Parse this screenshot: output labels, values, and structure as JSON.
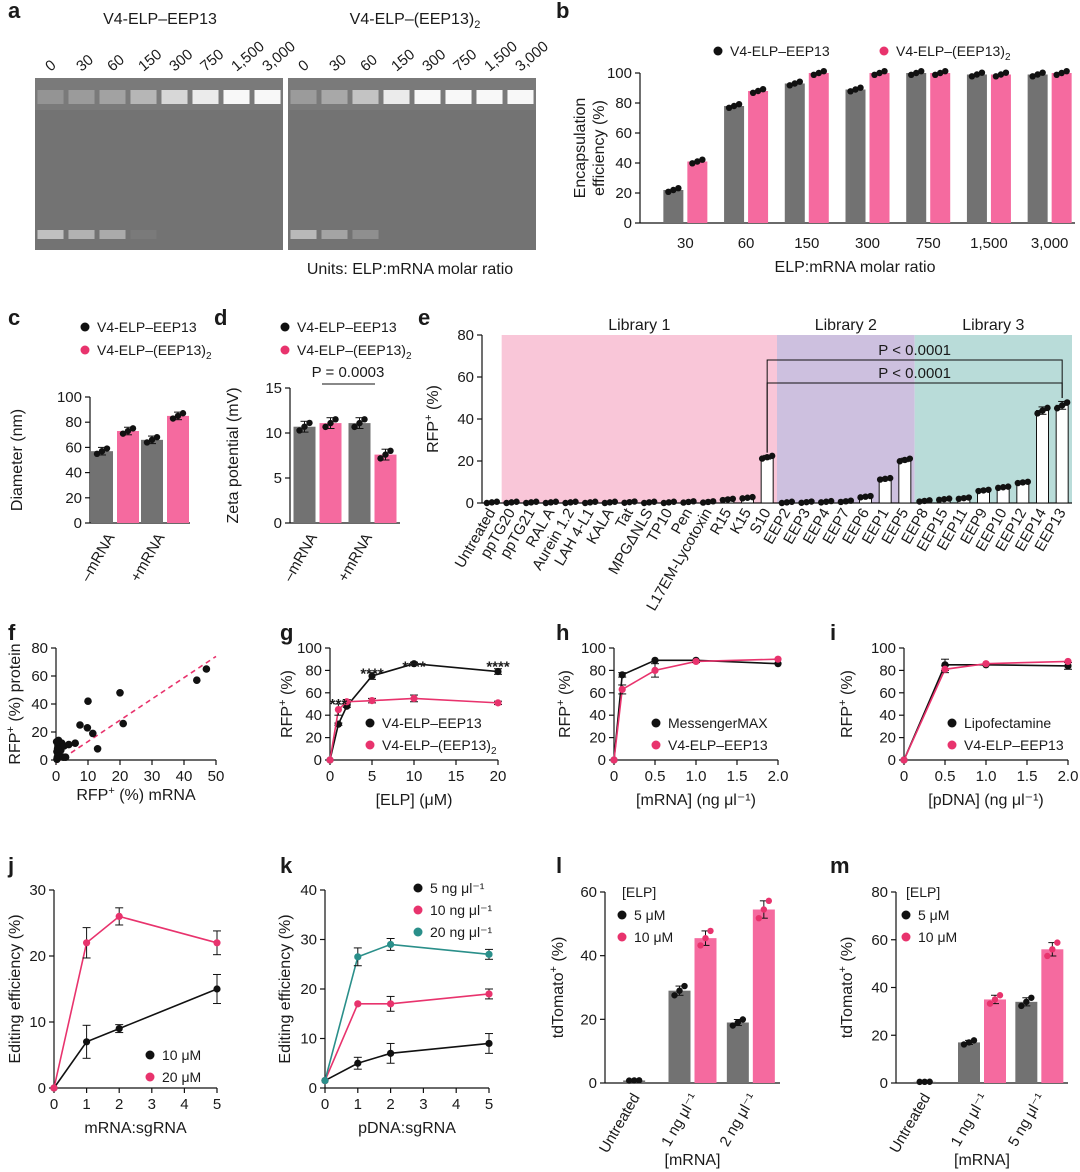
{
  "colors": {
    "gray": "#727272",
    "pink": "#f56a9f",
    "pink_dark": "#e8336d",
    "teal": "#2a8f8a",
    "black": "#111111",
    "lib1": "#f9c6d8",
    "lib2": "#cdc0df",
    "lib3": "#b9dcd9",
    "lib2_text": "#7a3d9c",
    "lib3_text": "#2a8f8a",
    "lib1_text": "#e0457b"
  },
  "panel_letters": [
    "a",
    "b",
    "c",
    "d",
    "e",
    "f",
    "g",
    "h",
    "i",
    "j",
    "k",
    "l",
    "m"
  ],
  "gel": {
    "title_left": "V4-ELP–EEP13",
    "title_right": "V4-ELP–(EEP13)",
    "title_right_sub": "2",
    "lanes": [
      "0",
      "30",
      "60",
      "150",
      "300",
      "750",
      "1,500",
      "3,000"
    ],
    "units": "Units: ELP:mRNA molar ratio"
  },
  "chart_data": [
    {
      "id": "b",
      "type": "bar",
      "title": "",
      "xlabel": "ELP:mRNA molar ratio",
      "ylabel": "Encapsulation efficiency (%)",
      "ylim": [
        0,
        100
      ],
      "yticks": [
        0,
        20,
        40,
        60,
        80,
        100
      ],
      "categories": [
        "30",
        "60",
        "150",
        "300",
        "750",
        "1,500",
        "3,000"
      ],
      "series": [
        {
          "name": "V4-ELP–EEP13",
          "values": [
            22,
            78,
            93,
            89,
            100,
            99,
            99
          ]
        },
        {
          "name": "V4-ELP–(EEP13)2",
          "values": [
            41,
            88,
            100,
            100,
            100,
            99,
            100
          ]
        }
      ]
    },
    {
      "id": "c",
      "type": "bar",
      "xlabel": "",
      "ylabel": "Diameter (nm)",
      "ylim": [
        0,
        100
      ],
      "yticks": [
        0,
        20,
        40,
        60,
        80,
        100
      ],
      "categories": [
        "–mRNA",
        "+mRNA"
      ],
      "series": [
        {
          "name": "V4-ELP–EEP13",
          "values": [
            57,
            66
          ]
        },
        {
          "name": "V4-ELP–(EEP13)2",
          "values": [
            73,
            85
          ]
        }
      ]
    },
    {
      "id": "d",
      "type": "bar",
      "xlabel": "",
      "ylabel": "Zeta potential (mV)",
      "ylim": [
        0,
        15
      ],
      "yticks": [
        0,
        5,
        10,
        15
      ],
      "categories": [
        "–mRNA",
        "+mRNA"
      ],
      "series": [
        {
          "name": "V4-ELP–EEP13",
          "values": [
            10.7,
            11.1
          ]
        },
        {
          "name": "V4-ELP–(EEP13)2",
          "values": [
            11.1,
            7.6
          ]
        }
      ],
      "annotation": "P = 0.0003"
    },
    {
      "id": "e",
      "type": "bar",
      "ylabel": "RFP+ (%)",
      "ylim": [
        0,
        80
      ],
      "yticks": [
        0,
        20,
        40,
        60,
        80
      ],
      "libraries": [
        "Library 1",
        "Library 2",
        "Library 3"
      ],
      "categories": [
        "Untreated",
        "ppTG20",
        "ppTG21",
        "RAL A",
        "Aurein 1.2",
        "LAH 4-L1",
        "KALA",
        "Tat",
        "MPGΔNLS",
        "TP10",
        "Pen",
        "L17EM-Lycotoxin",
        "R15",
        "K15",
        "S10",
        "EEP2",
        "EEP3",
        "EEP4",
        "EEP7",
        "EEP6",
        "EEP1",
        "EEP5",
        "EEP8",
        "EEP15",
        "EEP11",
        "EEP9",
        "EEP10",
        "EEP12",
        "EEP14",
        "EEP13"
      ],
      "values": [
        0.3,
        0.3,
        0.3,
        0.3,
        0.3,
        0.3,
        0.3,
        0.4,
        0.3,
        0.3,
        0.5,
        0.5,
        1.7,
        2.5,
        21.8,
        0.3,
        0.4,
        0.6,
        0.8,
        3,
        11.5,
        20.5,
        1,
        1.8,
        2.3,
        6,
        7.5,
        9.8,
        44,
        46.5
      ],
      "annotations": [
        "P < 0.0001",
        "P < 0.0001"
      ]
    },
    {
      "id": "f",
      "type": "scatter",
      "xlabel": "RFP+ (%) mRNA",
      "ylabel": "RFP+ (%) protein",
      "xlim": [
        0,
        50
      ],
      "ylim": [
        0,
        80
      ],
      "xticks": [
        0,
        10,
        20,
        30,
        40,
        50
      ],
      "yticks": [
        0,
        20,
        40,
        60,
        80
      ],
      "x": [
        0.3,
        0.4,
        0.5,
        0.6,
        0.8,
        1,
        1.5,
        1.8,
        2.3,
        2.5,
        0.3,
        0.2,
        0.5,
        3,
        4,
        6,
        7.5,
        9.8,
        10,
        11.5,
        13,
        20,
        21,
        44,
        47
      ],
      "y": [
        0.5,
        2,
        5,
        10,
        14,
        3,
        7,
        12,
        2,
        10,
        6,
        13,
        8,
        2,
        11,
        12,
        25,
        23,
        42,
        19,
        8,
        48,
        26,
        57,
        65
      ]
    },
    {
      "id": "g",
      "type": "line",
      "xlabel": "[ELP] (μM)",
      "ylabel": "RFP+ (%)",
      "xlim": [
        0,
        20
      ],
      "ylim": [
        0,
        100
      ],
      "xticks": [
        0,
        5,
        10,
        15,
        20
      ],
      "yticks": [
        0,
        20,
        40,
        60,
        80,
        100
      ],
      "series": [
        {
          "name": "V4-ELP–EEP13",
          "x": [
            0,
            1,
            2,
            5,
            10,
            20
          ],
          "y": [
            0,
            32,
            48,
            75,
            86,
            79
          ]
        },
        {
          "name": "V4-ELP–(EEP13)2",
          "x": [
            0,
            1,
            2,
            5,
            10,
            20
          ],
          "y": [
            0,
            45,
            52,
            53,
            55,
            51
          ]
        }
      ],
      "significance": [
        "***",
        "****",
        "****",
        "****"
      ]
    },
    {
      "id": "h",
      "type": "line",
      "xlabel": "[mRNA] (ng μl⁻¹)",
      "ylabel": "RFP+ (%)",
      "xlim": [
        0,
        2
      ],
      "ylim": [
        0,
        100
      ],
      "xticks": [
        0,
        0.5,
        1.0,
        1.5,
        2.0
      ],
      "yticks": [
        0,
        20,
        40,
        60,
        80,
        100
      ],
      "series": [
        {
          "name": "MessengerMAX",
          "x": [
            0,
            0.1,
            0.5,
            1,
            2
          ],
          "y": [
            0,
            76,
            89,
            89,
            86
          ]
        },
        {
          "name": "V4-ELP–EEP13",
          "x": [
            0,
            0.1,
            0.5,
            1,
            2
          ],
          "y": [
            0,
            63,
            80,
            88,
            90
          ]
        }
      ]
    },
    {
      "id": "i",
      "type": "line",
      "xlabel": "[pDNA] (ng μl⁻¹)",
      "ylabel": "RFP+ (%)",
      "xlim": [
        0,
        2
      ],
      "ylim": [
        0,
        100
      ],
      "xticks": [
        0,
        0.5,
        1.0,
        1.5,
        2.0
      ],
      "yticks": [
        0,
        20,
        40,
        60,
        80,
        100
      ],
      "series": [
        {
          "name": "Lipofectamine",
          "x": [
            0,
            0.5,
            1,
            2
          ],
          "y": [
            0,
            85,
            85,
            84
          ]
        },
        {
          "name": "V4-ELP–EEP13",
          "x": [
            0,
            0.5,
            1,
            2
          ],
          "y": [
            0,
            81,
            86,
            88
          ]
        }
      ]
    },
    {
      "id": "j",
      "type": "line",
      "xlabel": "mRNA:sgRNA",
      "ylabel": "Editing efficiency (%)",
      "xlim": [
        0,
        5
      ],
      "ylim": [
        0,
        30
      ],
      "xticks": [
        0,
        1,
        2,
        3,
        4,
        5
      ],
      "yticks": [
        0,
        10,
        20,
        30
      ],
      "series": [
        {
          "name": "10 μM",
          "x": [
            0,
            1,
            2,
            5
          ],
          "y": [
            0,
            7,
            9,
            15
          ]
        },
        {
          "name": "20 μM",
          "x": [
            0,
            1,
            2,
            5
          ],
          "y": [
            0,
            22,
            26,
            22
          ]
        }
      ]
    },
    {
      "id": "k",
      "type": "line",
      "xlabel": "pDNA:sgRNA",
      "ylabel": "Editing efficiency (%)",
      "xlim": [
        0,
        5
      ],
      "ylim": [
        0,
        40
      ],
      "xticks": [
        0,
        1,
        2,
        3,
        4,
        5
      ],
      "yticks": [
        0,
        10,
        20,
        30,
        40
      ],
      "series": [
        {
          "name": "5 ng μl⁻¹",
          "x": [
            0,
            1,
            2,
            5
          ],
          "y": [
            1.5,
            5,
            7,
            9
          ]
        },
        {
          "name": "10 ng μl⁻¹",
          "x": [
            0,
            1,
            2,
            5
          ],
          "y": [
            1.5,
            17,
            17,
            19
          ]
        },
        {
          "name": "20 ng μl⁻¹",
          "x": [
            0,
            1,
            2,
            5
          ],
          "y": [
            1.5,
            26.5,
            29,
            27
          ]
        }
      ]
    },
    {
      "id": "l",
      "type": "bar",
      "xlabel": "[mRNA]",
      "ylabel": "tdTomato+ (%)",
      "ylim": [
        0,
        60
      ],
      "yticks": [
        0,
        20,
        40,
        60
      ],
      "legend_title": "[ELP]",
      "categories": [
        "Untreated",
        "1 ng μl⁻¹",
        "2 ng μl⁻¹"
      ],
      "series": [
        {
          "name": "5 μM",
          "values": [
            0.8,
            29,
            19
          ]
        },
        {
          "name": "10 μM",
          "values": [
            null,
            45.5,
            54.5
          ]
        }
      ]
    },
    {
      "id": "m",
      "type": "bar",
      "xlabel": "[mRNA]",
      "ylabel": "tdTomato+ (%)",
      "ylim": [
        0,
        80
      ],
      "yticks": [
        0,
        20,
        40,
        60,
        80
      ],
      "legend_title": "[ELP]",
      "categories": [
        "Untreated",
        "1 ng μl⁻¹",
        "5 ng μl⁻¹"
      ],
      "series": [
        {
          "name": "5 μM",
          "values": [
            0.5,
            17,
            34
          ]
        },
        {
          "name": "10 μM",
          "values": [
            null,
            35,
            56
          ]
        }
      ]
    }
  ]
}
